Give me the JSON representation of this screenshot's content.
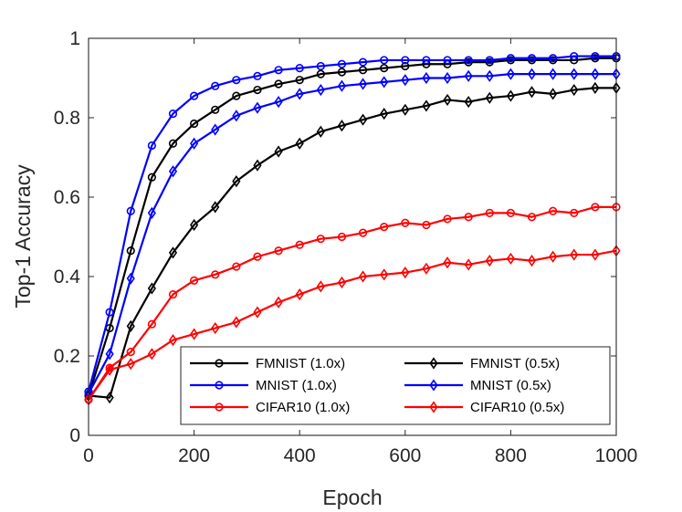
{
  "chart_data": {
    "type": "line",
    "title": "",
    "xlabel": "Epoch",
    "ylabel": "Top-1 Accuracy",
    "xlim": [
      0,
      1000
    ],
    "ylim": [
      0,
      1
    ],
    "xticks": [
      0,
      200,
      400,
      600,
      800,
      1000
    ],
    "xtick_labels": [
      "0",
      "200",
      "400",
      "600",
      "800",
      "1000"
    ],
    "yticks": [
      0,
      0.2,
      0.4,
      0.6,
      0.8,
      1
    ],
    "ytick_labels": [
      "0",
      "0.2",
      "0.4",
      "0.6",
      "0.8",
      "1"
    ],
    "grid": false,
    "legend_position": "bottom-right",
    "x": [
      0,
      40,
      80,
      120,
      160,
      200,
      240,
      280,
      320,
      360,
      400,
      440,
      480,
      520,
      560,
      600,
      640,
      680,
      720,
      760,
      800,
      840,
      880,
      920,
      960,
      1000
    ],
    "series": [
      {
        "name": "FMNIST (1.0x)",
        "color": "#000000",
        "marker": "circle",
        "values": [
          0.1,
          0.27,
          0.465,
          0.65,
          0.735,
          0.785,
          0.82,
          0.855,
          0.87,
          0.885,
          0.895,
          0.91,
          0.915,
          0.92,
          0.925,
          0.93,
          0.935,
          0.935,
          0.94,
          0.94,
          0.945,
          0.945,
          0.945,
          0.945,
          0.95,
          0.95
        ]
      },
      {
        "name": "FMNIST (0.5x)",
        "color": "#000000",
        "marker": "diamond",
        "values": [
          0.1,
          0.095,
          0.275,
          0.37,
          0.46,
          0.53,
          0.575,
          0.64,
          0.68,
          0.715,
          0.735,
          0.765,
          0.78,
          0.795,
          0.81,
          0.82,
          0.83,
          0.845,
          0.84,
          0.85,
          0.855,
          0.865,
          0.86,
          0.87,
          0.875,
          0.875
        ]
      },
      {
        "name": "MNIST (1.0x)",
        "color": "#0000ff",
        "marker": "circle",
        "values": [
          0.11,
          0.31,
          0.565,
          0.73,
          0.81,
          0.855,
          0.88,
          0.895,
          0.905,
          0.92,
          0.925,
          0.93,
          0.935,
          0.94,
          0.945,
          0.945,
          0.945,
          0.945,
          0.945,
          0.945,
          0.95,
          0.95,
          0.95,
          0.955,
          0.955,
          0.955
        ]
      },
      {
        "name": "MNIST (0.5x)",
        "color": "#0000ff",
        "marker": "diamond",
        "values": [
          0.105,
          0.205,
          0.395,
          0.56,
          0.665,
          0.735,
          0.77,
          0.805,
          0.825,
          0.84,
          0.86,
          0.87,
          0.88,
          0.885,
          0.89,
          0.895,
          0.9,
          0.9,
          0.905,
          0.905,
          0.91,
          0.91,
          0.91,
          0.91,
          0.91,
          0.91
        ]
      },
      {
        "name": "CIFAR10 (1.0x)",
        "color": "#ff0000",
        "marker": "circle",
        "values": [
          0.09,
          0.17,
          0.21,
          0.28,
          0.355,
          0.39,
          0.405,
          0.425,
          0.45,
          0.465,
          0.48,
          0.495,
          0.5,
          0.51,
          0.525,
          0.535,
          0.53,
          0.545,
          0.55,
          0.56,
          0.56,
          0.55,
          0.565,
          0.56,
          0.575,
          0.575
        ]
      },
      {
        "name": "CIFAR10 (0.5x)",
        "color": "#ff0000",
        "marker": "diamond",
        "values": [
          0.09,
          0.165,
          0.18,
          0.205,
          0.24,
          0.255,
          0.27,
          0.285,
          0.31,
          0.335,
          0.355,
          0.375,
          0.385,
          0.4,
          0.405,
          0.41,
          0.42,
          0.435,
          0.43,
          0.44,
          0.445,
          0.44,
          0.45,
          0.455,
          0.455,
          0.465
        ]
      }
    ]
  }
}
